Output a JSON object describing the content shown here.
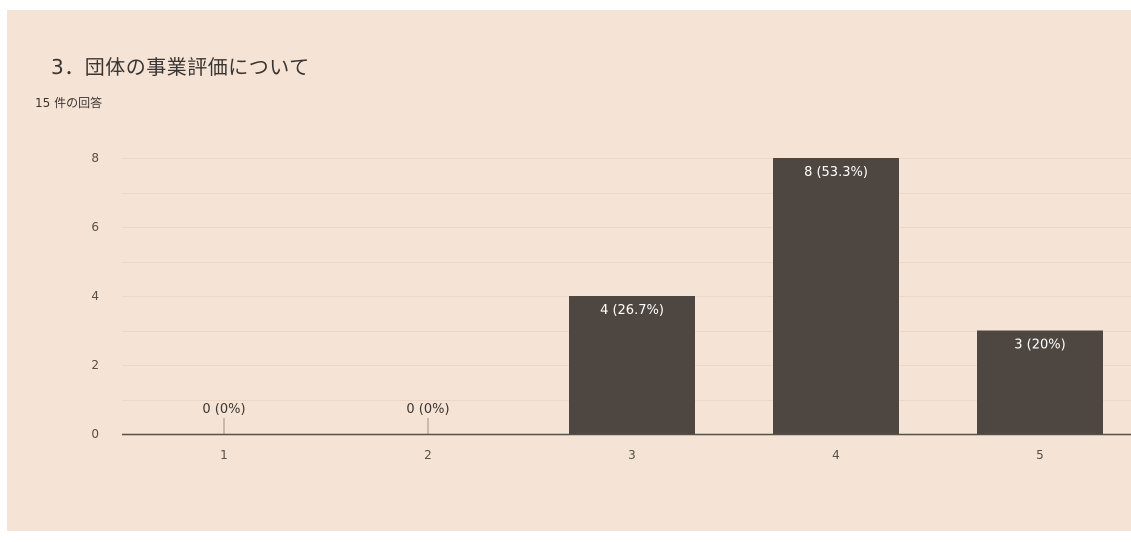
{
  "question": {
    "title": "3．団体の事業評価について",
    "responses": "15 件の回答"
  },
  "colors": {
    "background": "#f5e4d5",
    "bar": "#4e4741",
    "grid": "#ecd8c6",
    "axis": "#555049",
    "label_inside": "#ffffff",
    "label_outside": "#3a3532"
  },
  "chart_data": {
    "type": "bar",
    "title": "3．団体の事業評価について",
    "xlabel": "",
    "ylabel": "",
    "categories": [
      "1",
      "2",
      "3",
      "4",
      "5"
    ],
    "values": [
      0,
      0,
      4,
      8,
      3
    ],
    "data_labels": [
      "0 (0%)",
      "0 (0%)",
      "4 (26.7%)",
      "8 (53.3%)",
      "3 (20%)"
    ],
    "ylim": [
      0,
      8
    ],
    "yticks": [
      0,
      2,
      4,
      6,
      8
    ],
    "grid": true,
    "legend": "none"
  }
}
